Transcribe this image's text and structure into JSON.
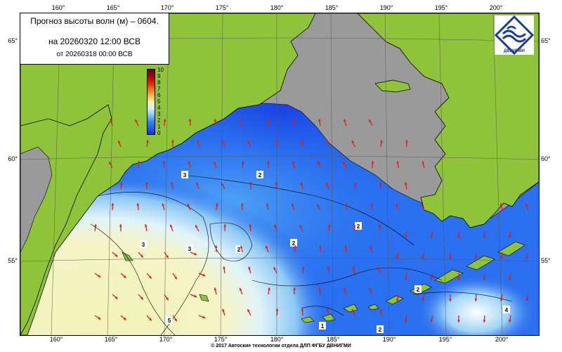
{
  "title": {
    "line1": "Прогноз высоты волн (м) – 0604.",
    "line2": "на 20260320 12:00 ВСВ",
    "line3": "от 20260318 00:00 ВСВ"
  },
  "logo_text": "ДВНИГМИ",
  "footer": "© 2017 Автоские технологии отдела ДЛП ФГБУ ДВНИГМИ",
  "longitude_ticks": [
    "160°",
    "165°",
    "170°",
    "175°",
    "180°",
    "185°",
    "190°",
    "195°",
    "200°"
  ],
  "latitude_ticks_left": [
    "65°",
    "60°",
    "55°"
  ],
  "latitude_ticks_right": [
    "65°",
    "60°",
    "55°"
  ],
  "colorbar": {
    "labels": [
      "10",
      "9",
      "8",
      "7",
      "6",
      "5",
      "4",
      "3",
      "2",
      "1",
      "0"
    ]
  },
  "contour_labels": [
    "3",
    "2",
    "3",
    "2",
    "2",
    "2",
    "2",
    "3",
    "4",
    "1",
    "2",
    "5"
  ],
  "colors": {
    "land": "#8fc43a",
    "no_data": "#9a9a9a",
    "sea_low": "#1e62ee",
    "sea_high": "#f2f2b8",
    "arrow": "#e01c14"
  }
}
